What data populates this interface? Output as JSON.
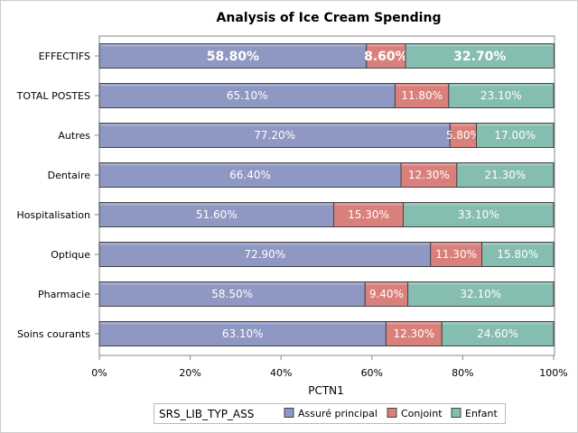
{
  "chart_data": {
    "type": "bar",
    "orientation": "horizontal",
    "stacked": true,
    "title": "Analysis of Ice Cream Spending",
    "xlabel": "PCTN1",
    "ylabel": "",
    "xlim": [
      0,
      100
    ],
    "x_ticks": [
      "0%",
      "20%",
      "40%",
      "60%",
      "80%",
      "100%"
    ],
    "categories": [
      "EFFECTIFS",
      "TOTAL POSTES",
      "Autres",
      "Dentaire",
      "Hospitalisation",
      "Optique",
      "Pharmacie",
      "Soins courants"
    ],
    "series": [
      {
        "name": "Assuré principal",
        "color": "#8f97c3",
        "values": [
          58.8,
          65.1,
          77.2,
          66.4,
          51.6,
          72.9,
          58.5,
          63.1
        ],
        "labels": [
          "58.80%",
          "65.10%",
          "77.20%",
          "66.40%",
          "51.60%",
          "72.90%",
          "58.50%",
          "63.10%"
        ]
      },
      {
        "name": "Conjoint",
        "color": "#d9807c",
        "values": [
          8.6,
          11.8,
          5.8,
          12.3,
          15.3,
          11.3,
          9.4,
          12.3
        ],
        "labels": [
          "8.60%",
          "11.80%",
          "5.80%",
          "12.30%",
          "15.30%",
          "11.30%",
          "9.40%",
          "12.30%"
        ]
      },
      {
        "name": "Enfant",
        "color": "#86bdb1",
        "values": [
          32.7,
          23.1,
          17.0,
          21.3,
          33.1,
          15.8,
          32.1,
          24.6
        ],
        "labels": [
          "32.70%",
          "23.10%",
          "17.00%",
          "21.30%",
          "33.10%",
          "15.80%",
          "32.10%",
          "24.60%"
        ]
      }
    ],
    "legend": {
      "title": "SRS_LIB_TYP_ASS",
      "placement": "bottom"
    },
    "grid": false
  }
}
